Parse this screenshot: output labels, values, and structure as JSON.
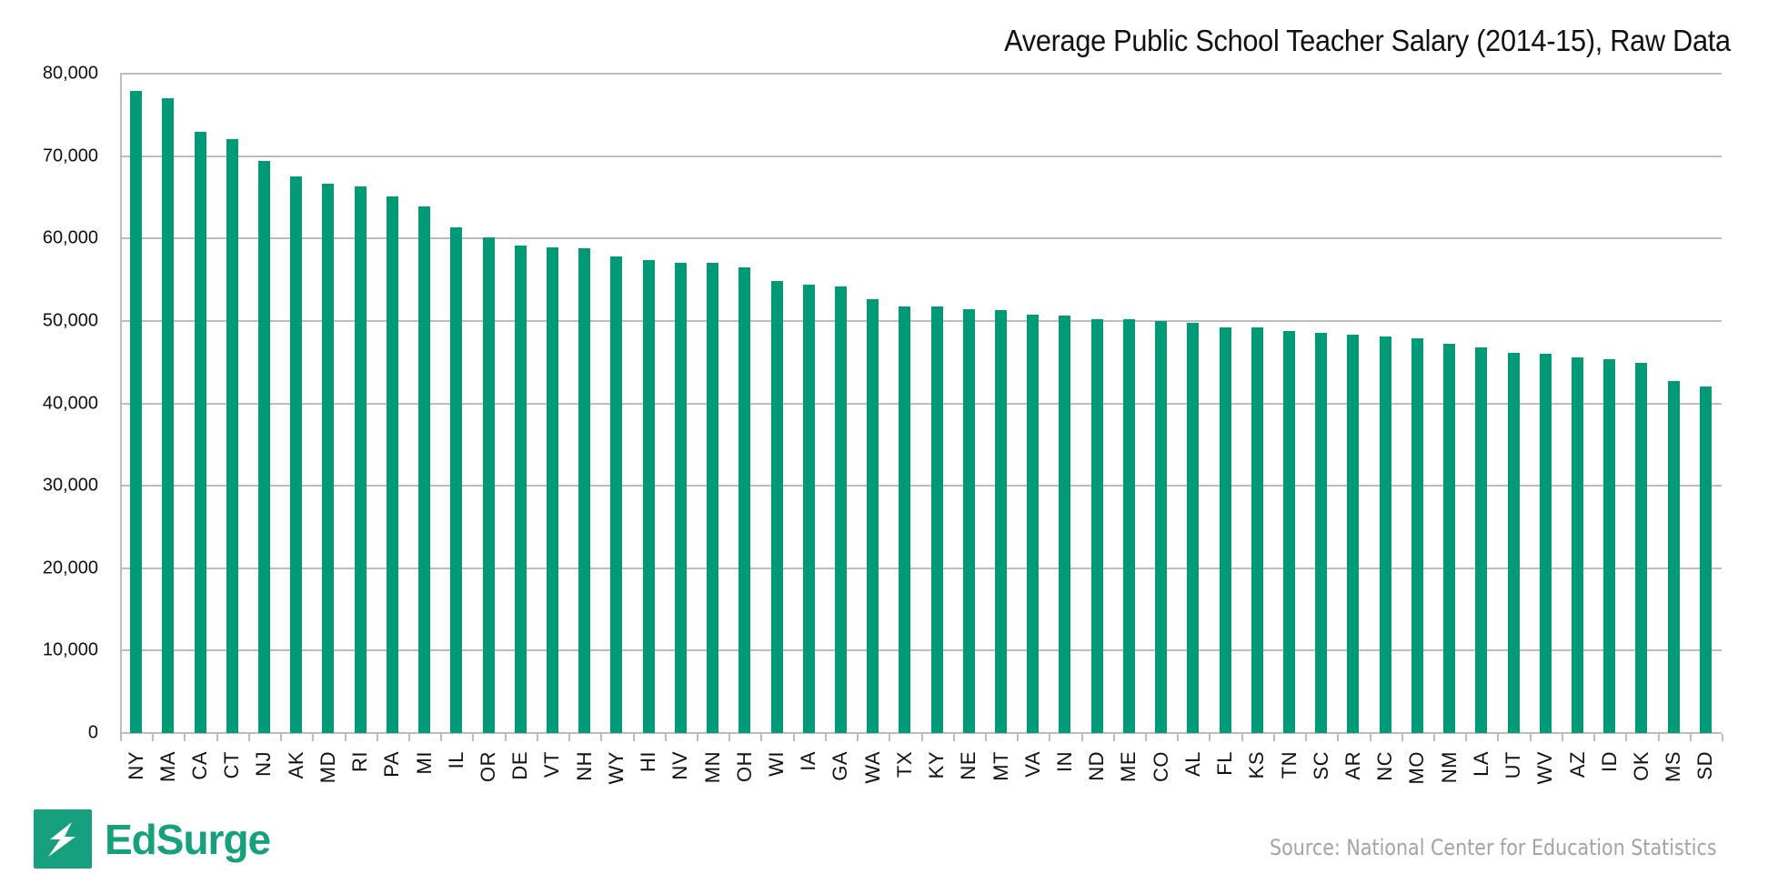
{
  "header": {
    "title": "Average Public School Teacher Salary (2014-15), Raw Data"
  },
  "footer": {
    "brand": "EdSurge",
    "source": "Source: National Center for Education Statistics"
  },
  "colors": {
    "bar": "#009a77",
    "brand": "#16a07d",
    "grid": "#bdbdbd",
    "source_text": "#a3a3a3"
  },
  "y_ticks": [
    "80,000",
    "70,000",
    "60,000",
    "50,000",
    "40,000",
    "30,000",
    "20,000",
    "10,000",
    "0"
  ],
  "chart_data": {
    "type": "bar",
    "title": "Average Public School Teacher Salary (2014-15), Raw Data",
    "xlabel": "",
    "ylabel": "",
    "ylim": [
      0,
      80000
    ],
    "y_tick_step": 10000,
    "grid": true,
    "legend": null,
    "categories": [
      "NY",
      "MA",
      "CA",
      "CT",
      "NJ",
      "AK",
      "MD",
      "RI",
      "PA",
      "MI",
      "IL",
      "OR",
      "DE",
      "VT",
      "NH",
      "WY",
      "HI",
      "NV",
      "MN",
      "OH",
      "WI",
      "IA",
      "GA",
      "WA",
      "TX",
      "KY",
      "NE",
      "MT",
      "VA",
      "IN",
      "ND",
      "ME",
      "CO",
      "AL",
      "FL",
      "KS",
      "TN",
      "SC",
      "AR",
      "NC",
      "MO",
      "NM",
      "LA",
      "UT",
      "WV",
      "AZ",
      "ID",
      "OK",
      "MS",
      "SD"
    ],
    "values": [
      77900,
      77000,
      72900,
      72100,
      69400,
      67500,
      66600,
      66300,
      65100,
      63900,
      61300,
      60100,
      59100,
      58900,
      58800,
      57800,
      57400,
      57000,
      57000,
      56500,
      54800,
      54400,
      54200,
      52600,
      51800,
      51700,
      51400,
      51300,
      50800,
      50700,
      50200,
      50200,
      50000,
      49800,
      49200,
      49200,
      48800,
      48600,
      48300,
      48100,
      47900,
      47200,
      46800,
      46100,
      46000,
      45600,
      45400,
      44900,
      42700,
      42000
    ],
    "source": "Source: National Center for Education Statistics"
  }
}
